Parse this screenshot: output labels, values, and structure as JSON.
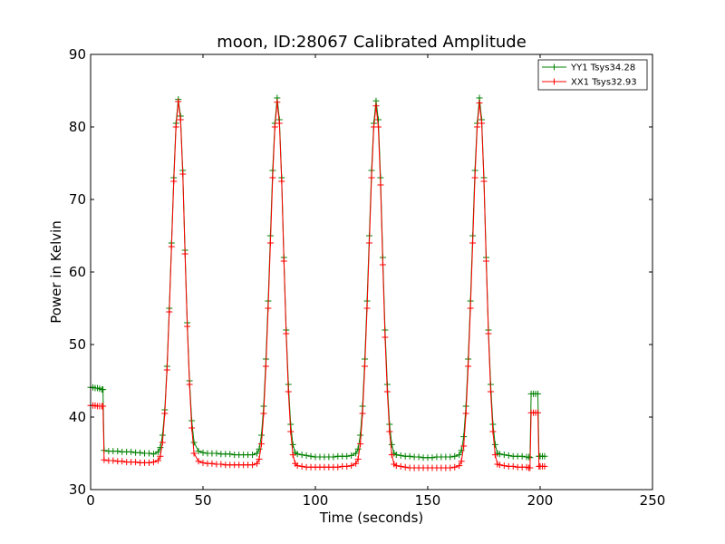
{
  "chart_data": {
    "type": "line",
    "title": "moon, ID:28067 Calibrated Amplitude",
    "xlabel": "Time (seconds)",
    "ylabel": "Power in Kelvin",
    "xlim": [
      0,
      250
    ],
    "ylim": [
      30,
      90
    ],
    "xticks": [
      0,
      50,
      100,
      150,
      200,
      250
    ],
    "yticks": [
      30,
      40,
      50,
      60,
      70,
      80,
      90
    ],
    "xtick_labels": [
      "0",
      "50",
      "100",
      "150",
      "200",
      "250"
    ],
    "ytick_labels": [
      "30",
      "40",
      "50",
      "60",
      "70",
      "80",
      "90"
    ],
    "legend_position": "top-right",
    "series": [
      {
        "name": "YY1 Tsys34.28",
        "color": "#008000",
        "marker": "+",
        "x": [
          0,
          1,
          2,
          3,
          4,
          5,
          5.5,
          6,
          8,
          10,
          12,
          14,
          16,
          18,
          20,
          22,
          24,
          26,
          28,
          30,
          31,
          32,
          33,
          34,
          35,
          36,
          37,
          38,
          39,
          40,
          41,
          42,
          43,
          44,
          45,
          46,
          48,
          50,
          52,
          54,
          56,
          58,
          60,
          62,
          64,
          66,
          68,
          70,
          72,
          74,
          75,
          76,
          77,
          78,
          79,
          80,
          81,
          82,
          83,
          84,
          85,
          86,
          87,
          88,
          89,
          90,
          91,
          92,
          94,
          96,
          98,
          100,
          102,
          104,
          106,
          108,
          110,
          112,
          114,
          116,
          118,
          119,
          120,
          121,
          122,
          123,
          124,
          125,
          126,
          127,
          128,
          129,
          130,
          131,
          132,
          133,
          134,
          135,
          136,
          138,
          140,
          142,
          144,
          146,
          148,
          150,
          152,
          154,
          156,
          158,
          160,
          162,
          164,
          165,
          166,
          167,
          168,
          169,
          170,
          171,
          172,
          173,
          174,
          175,
          176,
          177,
          178,
          179,
          180,
          181,
          182,
          184,
          186,
          188,
          190,
          192,
          194,
          195,
          195.5,
          196,
          197,
          198,
          199,
          199.5,
          200,
          201,
          202
        ],
        "y": [
          44.1,
          44.1,
          44.0,
          44.0,
          43.9,
          43.8,
          43.8,
          35.4,
          35.3,
          35.3,
          35.3,
          35.2,
          35.2,
          35.2,
          35.1,
          35.1,
          35.0,
          35.0,
          34.9,
          35.2,
          35.8,
          37.5,
          41.0,
          47.0,
          55.0,
          64.0,
          73.0,
          80.5,
          83.8,
          81.5,
          74.0,
          63.0,
          53.0,
          45.0,
          39.5,
          36.5,
          35.3,
          35.1,
          35.0,
          35.0,
          35.0,
          34.9,
          34.9,
          34.9,
          34.8,
          34.8,
          34.8,
          34.8,
          34.8,
          35.0,
          35.6,
          37.5,
          41.5,
          48.0,
          56.0,
          65.0,
          74.0,
          80.5,
          84.0,
          81.0,
          73.0,
          62.0,
          52.0,
          44.5,
          39.0,
          36.2,
          35.1,
          34.9,
          34.8,
          34.7,
          34.6,
          34.5,
          34.5,
          34.5,
          34.5,
          34.5,
          34.6,
          34.6,
          34.6,
          34.7,
          35.0,
          35.6,
          37.5,
          41.5,
          48.0,
          56.0,
          65.0,
          74.0,
          80.5,
          83.6,
          81.0,
          73.0,
          62.0,
          52.0,
          44.5,
          39.0,
          36.2,
          35.0,
          34.8,
          34.7,
          34.6,
          34.6,
          34.5,
          34.5,
          34.4,
          34.4,
          34.4,
          34.5,
          34.5,
          34.5,
          34.5,
          34.6,
          34.8,
          35.4,
          37.3,
          41.5,
          48.0,
          56.0,
          65.0,
          74.0,
          80.5,
          84.0,
          81.0,
          73.0,
          62.0,
          52.0,
          44.5,
          39.0,
          36.2,
          35.0,
          34.9,
          34.8,
          34.7,
          34.6,
          34.6,
          34.6,
          34.5,
          34.5,
          34.4,
          43.2,
          43.2,
          43.2,
          43.2,
          34.6,
          34.6,
          34.6,
          34.6
        ]
      },
      {
        "name": "XX1 Tsys32.93",
        "color": "#ff0000",
        "marker": "+",
        "x": [
          0,
          1,
          2,
          3,
          4,
          5,
          5.5,
          6,
          8,
          10,
          12,
          14,
          16,
          18,
          20,
          22,
          24,
          26,
          28,
          30,
          31,
          32,
          33,
          34,
          35,
          36,
          37,
          38,
          39,
          40,
          41,
          42,
          43,
          44,
          45,
          46,
          48,
          50,
          52,
          54,
          56,
          58,
          60,
          62,
          64,
          66,
          68,
          70,
          72,
          74,
          75,
          76,
          77,
          78,
          79,
          80,
          81,
          82,
          83,
          84,
          85,
          86,
          87,
          88,
          89,
          90,
          91,
          92,
          94,
          96,
          98,
          100,
          102,
          104,
          106,
          108,
          110,
          112,
          114,
          116,
          118,
          119,
          120,
          121,
          122,
          123,
          124,
          125,
          126,
          127,
          128,
          129,
          130,
          131,
          132,
          133,
          134,
          135,
          136,
          138,
          140,
          142,
          144,
          146,
          148,
          150,
          152,
          154,
          156,
          158,
          160,
          162,
          164,
          165,
          166,
          167,
          168,
          169,
          170,
          171,
          172,
          173,
          174,
          175,
          176,
          177,
          178,
          179,
          180,
          181,
          182,
          184,
          186,
          188,
          190,
          192,
          194,
          195,
          195.5,
          196,
          197,
          198,
          199,
          199.5,
          200,
          201,
          202
        ],
        "y": [
          41.6,
          41.6,
          41.6,
          41.5,
          41.5,
          41.5,
          41.5,
          34.1,
          34.0,
          34.0,
          33.9,
          33.9,
          33.8,
          33.8,
          33.8,
          33.7,
          33.7,
          33.7,
          33.8,
          34.0,
          34.6,
          36.5,
          40.5,
          46.5,
          54.5,
          63.5,
          72.5,
          80.0,
          83.5,
          81.0,
          73.5,
          62.5,
          52.5,
          44.5,
          38.5,
          35.0,
          33.9,
          33.7,
          33.6,
          33.6,
          33.5,
          33.5,
          33.4,
          33.4,
          33.4,
          33.4,
          33.4,
          33.4,
          33.4,
          33.6,
          34.2,
          36.3,
          40.5,
          47.0,
          55.0,
          64.0,
          73.0,
          80.0,
          83.4,
          80.5,
          72.5,
          61.5,
          51.5,
          43.5,
          38.0,
          34.8,
          33.6,
          33.3,
          33.2,
          33.1,
          33.1,
          33.1,
          33.1,
          33.1,
          33.1,
          33.1,
          33.1,
          33.2,
          33.2,
          33.3,
          33.6,
          34.2,
          36.3,
          40.5,
          47.0,
          55.0,
          64.0,
          73.0,
          80.0,
          82.9,
          80.0,
          72.0,
          61.0,
          51.0,
          43.5,
          38.0,
          34.8,
          33.5,
          33.3,
          33.2,
          33.1,
          33.0,
          33.0,
          33.0,
          33.0,
          33.0,
          33.0,
          33.0,
          33.0,
          33.0,
          33.0,
          33.1,
          33.3,
          33.9,
          36.0,
          40.5,
          47.0,
          55.0,
          64.0,
          73.0,
          80.0,
          83.3,
          80.5,
          72.5,
          61.5,
          51.5,
          43.5,
          38.0,
          34.8,
          33.5,
          33.4,
          33.3,
          33.2,
          33.2,
          33.1,
          33.1,
          33.1,
          33.0,
          33.0,
          40.6,
          40.6,
          40.6,
          40.6,
          33.2,
          33.2,
          33.2,
          33.2
        ]
      }
    ]
  }
}
